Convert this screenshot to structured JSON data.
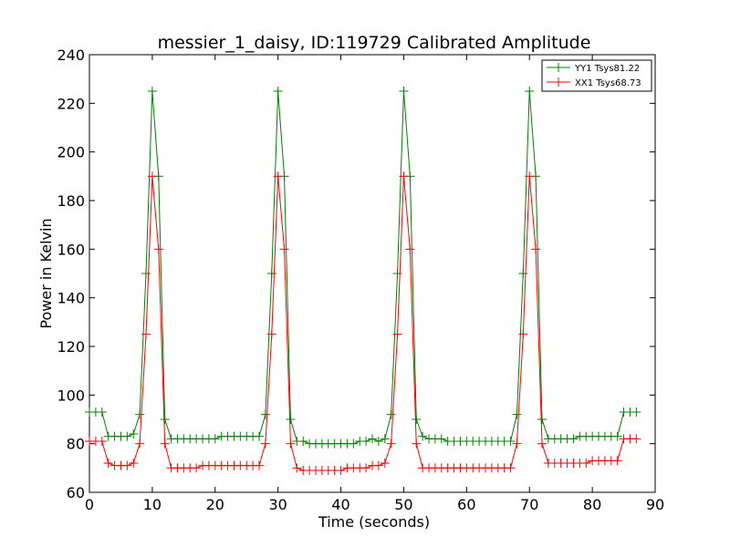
{
  "chart_data": {
    "type": "line",
    "title": "messier_1_daisy, ID:119729 Calibrated Amplitude",
    "xlabel": "Time (seconds)",
    "ylabel": "Power in Kelvin",
    "xlim": [
      0,
      90
    ],
    "ylim": [
      60,
      240
    ],
    "xticks": [
      "0",
      "10",
      "20",
      "30",
      "40",
      "50",
      "60",
      "70",
      "80",
      "90"
    ],
    "yticks": [
      "60",
      "80",
      "100",
      "120",
      "140",
      "160",
      "180",
      "200",
      "220",
      "240"
    ],
    "grid": false,
    "legend_position": "top-right",
    "marker": "plus",
    "series": [
      {
        "name": "YY1 Tsys81.22",
        "color": "#008000",
        "x": [
          0,
          1,
          2,
          3,
          4,
          5,
          6,
          7,
          8,
          9,
          10,
          11,
          12,
          13,
          14,
          15,
          16,
          17,
          18,
          19,
          20,
          21,
          22,
          23,
          24,
          25,
          26,
          27,
          28,
          29,
          30,
          31,
          32,
          33,
          34,
          35,
          36,
          37,
          38,
          39,
          40,
          41,
          42,
          43,
          44,
          45,
          46,
          47,
          48,
          49,
          50,
          51,
          52,
          53,
          54,
          55,
          56,
          57,
          58,
          59,
          60,
          61,
          62,
          63,
          64,
          65,
          66,
          67,
          68,
          69,
          70,
          71,
          72,
          73,
          74,
          75,
          76,
          77,
          78,
          79,
          80,
          81,
          82,
          83,
          84,
          85,
          86,
          87
        ],
        "values": [
          93,
          93,
          93,
          83,
          83,
          83,
          83,
          84,
          92,
          150,
          225,
          190,
          90,
          82,
          82,
          82,
          82,
          82,
          82,
          82,
          82,
          83,
          83,
          83,
          83,
          83,
          83,
          83,
          92,
          150,
          225,
          190,
          90,
          81,
          81,
          80,
          80,
          80,
          80,
          80,
          80,
          80,
          80,
          81,
          81,
          82,
          81,
          82,
          92,
          150,
          225,
          190,
          90,
          83,
          82,
          82,
          82,
          81,
          81,
          81,
          81,
          81,
          81,
          81,
          81,
          81,
          81,
          81,
          92,
          150,
          225,
          190,
          90,
          82,
          82,
          82,
          82,
          82,
          83,
          83,
          83,
          83,
          83,
          83,
          83,
          93,
          93,
          93
        ]
      },
      {
        "name": "XX1 Tsys68.73",
        "color": "#ff0000",
        "x": [
          0,
          1,
          2,
          3,
          4,
          5,
          6,
          7,
          8,
          9,
          10,
          11,
          12,
          13,
          14,
          15,
          16,
          17,
          18,
          19,
          20,
          21,
          22,
          23,
          24,
          25,
          26,
          27,
          28,
          29,
          30,
          31,
          32,
          33,
          34,
          35,
          36,
          37,
          38,
          39,
          40,
          41,
          42,
          43,
          44,
          45,
          46,
          47,
          48,
          49,
          50,
          51,
          52,
          53,
          54,
          55,
          56,
          57,
          58,
          59,
          60,
          61,
          62,
          63,
          64,
          65,
          66,
          67,
          68,
          69,
          70,
          71,
          72,
          73,
          74,
          75,
          76,
          77,
          78,
          79,
          80,
          81,
          82,
          83,
          84,
          85,
          86,
          87
        ],
        "values": [
          81,
          81,
          81,
          72,
          71,
          71,
          71,
          72,
          80,
          125,
          190,
          160,
          80,
          70,
          70,
          70,
          70,
          70,
          71,
          71,
          71,
          71,
          71,
          71,
          71,
          71,
          71,
          71,
          80,
          125,
          190,
          160,
          80,
          70,
          69,
          69,
          69,
          69,
          69,
          69,
          69,
          70,
          70,
          70,
          70,
          71,
          71,
          72,
          80,
          125,
          190,
          160,
          80,
          70,
          70,
          70,
          70,
          70,
          70,
          70,
          70,
          70,
          70,
          70,
          70,
          70,
          70,
          70,
          80,
          125,
          190,
          160,
          80,
          72,
          72,
          72,
          72,
          72,
          72,
          72,
          73,
          73,
          73,
          73,
          73,
          82,
          82,
          82
        ]
      }
    ]
  }
}
